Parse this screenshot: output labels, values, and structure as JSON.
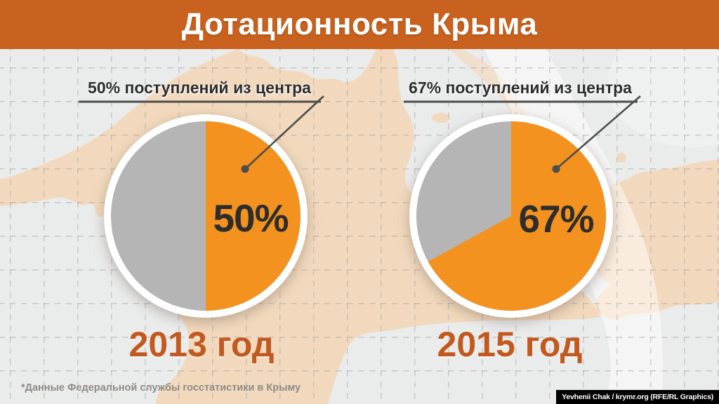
{
  "header": {
    "title": "Дотационность Крыма"
  },
  "chart_data": [
    {
      "type": "pie",
      "year": "2013 год",
      "callout": "50% поступлений из центра",
      "center_label": "50%",
      "slices": [
        {
          "label": "поступления из центра",
          "value": 50,
          "color": "#F3921E"
        },
        {
          "value": 50,
          "color": "#B5B5B6"
        }
      ],
      "legend_position": "none"
    },
    {
      "type": "pie",
      "year": "2015 год",
      "callout": "67% поступлений из центра",
      "center_label": "67%",
      "slices": [
        {
          "label": "поступления из центра",
          "value": 67,
          "color": "#F3921E"
        },
        {
          "value": 33,
          "color": "#B5B5B6"
        }
      ],
      "legend_position": "none"
    }
  ],
  "footer": {
    "source_note": "*Данные Федеральной службы госстатистики в Крыму",
    "credit": "Yevhenii Chak / krymr.org (RFE/RL Graphics)"
  },
  "colors": {
    "header_bg": "#C9621E",
    "accent_orange": "#F3921E",
    "slice_gray": "#B5B5B6",
    "year_text": "#C2591F",
    "dark_text": "#2D2D2D",
    "note_text": "#8D8B87",
    "background": "#EAEBEB",
    "map_fill": "#F2D9BD",
    "callout_line": "#4D4D4D",
    "credit_bg": "#000000"
  }
}
